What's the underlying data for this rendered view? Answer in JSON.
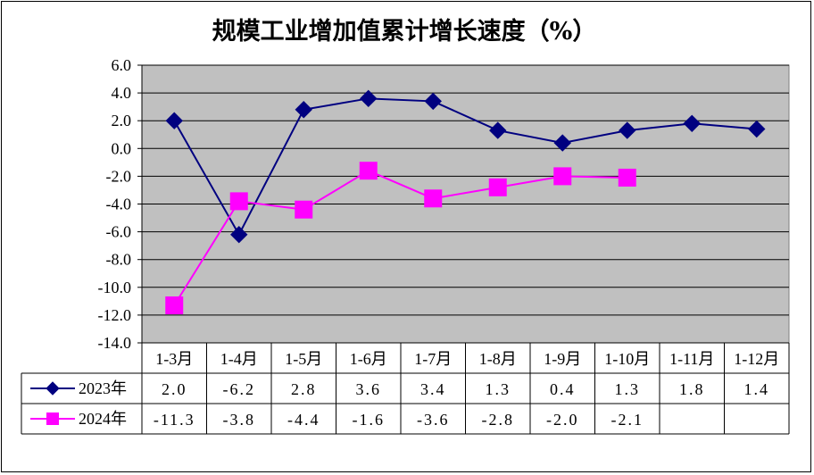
{
  "chart_data": {
    "type": "line",
    "title": "规模工业增加值累计增长速度（%）",
    "categories": [
      "1-3月",
      "1-4月",
      "1-5月",
      "1-6月",
      "1-7月",
      "1-8月",
      "1-9月",
      "1-10月",
      "1-11月",
      "1-12月"
    ],
    "ylim": [
      -14.0,
      6.0
    ],
    "yticks": [
      "6.0",
      "4.0",
      "2.0",
      "0.0",
      "-2.0",
      "-4.0",
      "-6.0",
      "-8.0",
      "-10.0",
      "-12.0",
      "-14.0"
    ],
    "ytick_values": [
      6,
      4,
      2,
      0,
      -2,
      -4,
      -6,
      -8,
      -10,
      -12,
      -14
    ],
    "grid": true,
    "legend": "data-table",
    "series": [
      {
        "name": "2023年",
        "values": [
          2.0,
          -6.2,
          2.8,
          3.6,
          3.4,
          1.3,
          0.4,
          1.3,
          1.8,
          1.4
        ],
        "labels": [
          "2.0",
          "-6.2",
          "2.8",
          "3.6",
          "3.4",
          "1.3",
          "0.4",
          "1.3",
          "1.8",
          "1.4"
        ],
        "color": "#000080",
        "marker": "diamond"
      },
      {
        "name": "2024年",
        "values": [
          -11.3,
          -3.8,
          -4.4,
          -1.6,
          -3.6,
          -2.8,
          -2.0,
          -2.1,
          null,
          null
        ],
        "labels": [
          "-11.3",
          "-3.8",
          "-4.4",
          "-1.6",
          "-3.6",
          "-2.8",
          "-2.0",
          "-2.1",
          "",
          ""
        ],
        "color": "#FF00FF",
        "marker": "square"
      }
    ],
    "plot_background": "#C0C0C0"
  }
}
